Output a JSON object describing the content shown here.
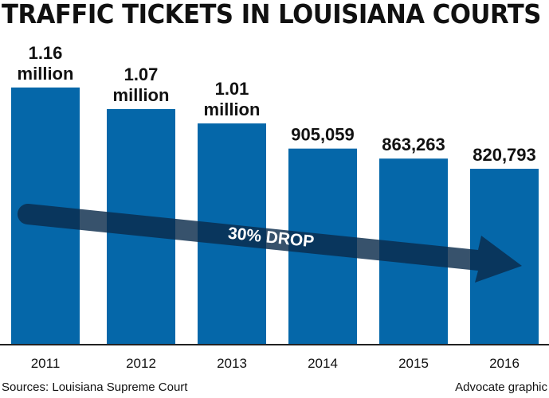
{
  "chart_data": {
    "type": "bar",
    "title": "TRAFFIC TICKETS IN LOUISIANA COURTS",
    "categories": [
      "2011",
      "2012",
      "2013",
      "2014",
      "2015",
      "2016"
    ],
    "values": [
      1160000,
      1070000,
      1010000,
      905059,
      863263,
      820793
    ],
    "data_labels": [
      [
        "1.16",
        "million"
      ],
      [
        "1.07",
        "million"
      ],
      [
        "1.01",
        "million"
      ],
      [
        "905,059"
      ],
      [
        "863,263"
      ],
      [
        "820,793"
      ]
    ],
    "annotation": "30% DROP",
    "xlabel": "",
    "ylabel": "",
    "grid": false,
    "colors": {
      "bar": "#0567a9",
      "arrow": "#0b2c4c"
    }
  },
  "footer": {
    "source": "Sources: Louisiana Supreme Court",
    "credit": "Advocate graphic"
  }
}
